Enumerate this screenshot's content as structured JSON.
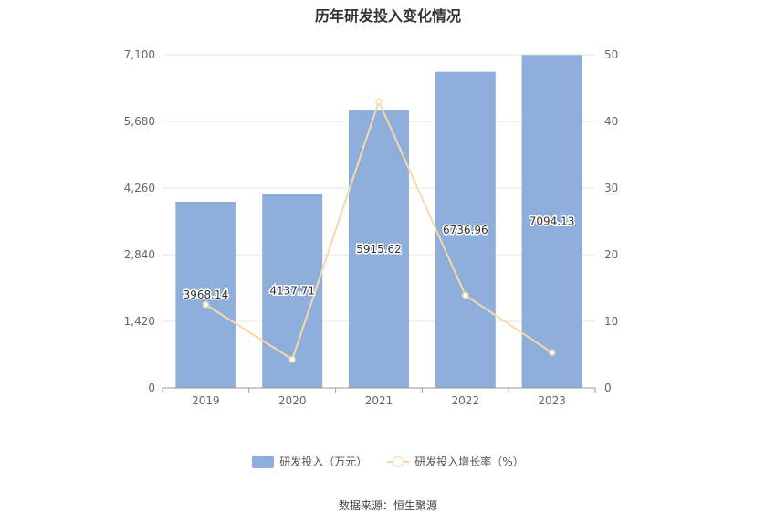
{
  "chart_data": {
    "type": "bar",
    "title": "历年研发投入变化情况",
    "categories": [
      "2019",
      "2020",
      "2021",
      "2022",
      "2023"
    ],
    "series": [
      {
        "name": "研发投入（万元）",
        "type": "bar",
        "axis": "left",
        "values": [
          3968.14,
          4137.71,
          5915.62,
          6736.96,
          7094.13
        ],
        "labels": [
          "3968.14",
          "4137.71",
          "5915.62",
          "6736.96",
          "7094.13"
        ],
        "color": "#8eaedb"
      },
      {
        "name": "研发投入增长率（%）",
        "type": "line",
        "axis": "right",
        "values": [
          12.5,
          4.3,
          43.0,
          13.9,
          5.3
        ],
        "color": "#f7d8a8"
      }
    ],
    "y_left": {
      "min": 0,
      "max": 7100,
      "ticks": [
        0,
        1420,
        2840,
        4260,
        5680,
        7100
      ],
      "tick_labels": [
        "0",
        "1,420",
        "2,840",
        "4,260",
        "5,680",
        "7,100"
      ]
    },
    "y_right": {
      "min": 0,
      "max": 50,
      "ticks": [
        0,
        10,
        20,
        30,
        40,
        50
      ],
      "tick_labels": [
        "0",
        "10",
        "20",
        "30",
        "40",
        "50"
      ]
    },
    "grid": true,
    "legend_position": "bottom"
  },
  "source": "数据来源：恒生聚源"
}
